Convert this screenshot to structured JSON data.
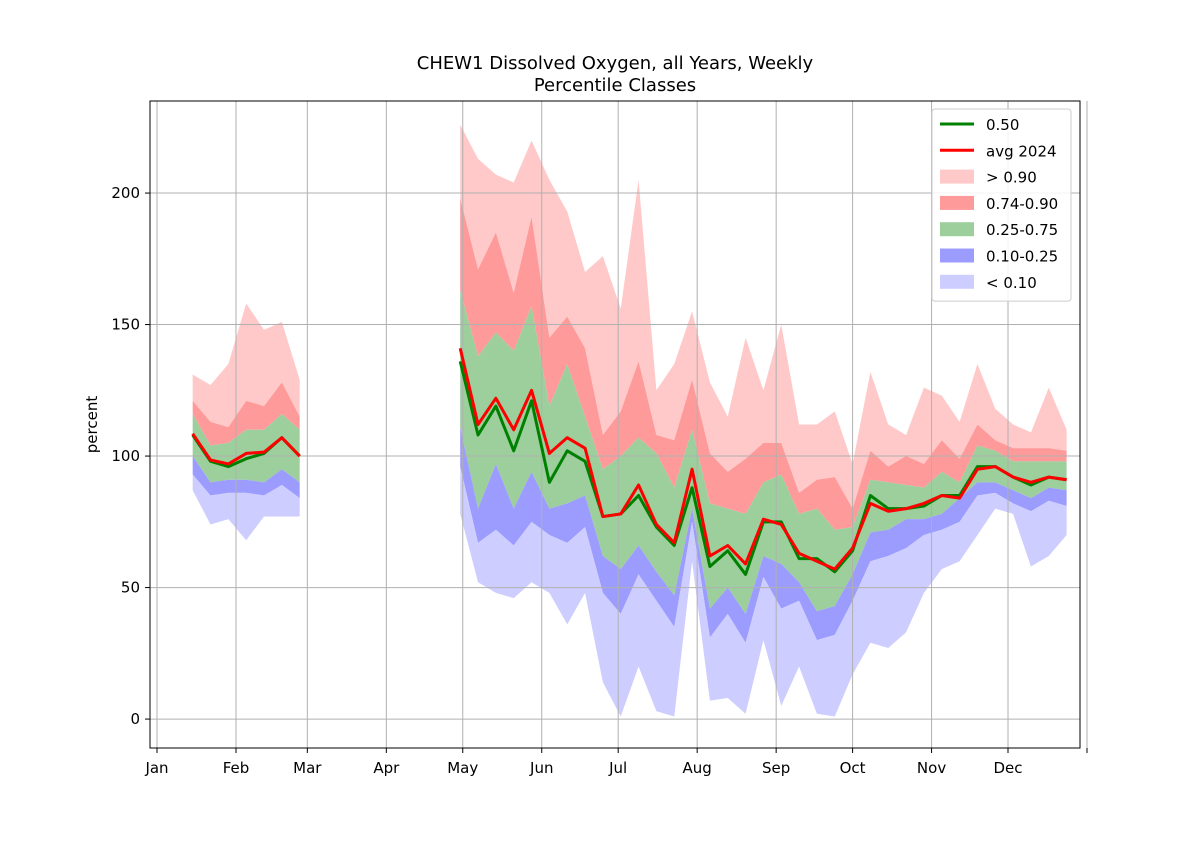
{
  "chart_data": {
    "type": "area",
    "title": "CHEW1 Dissolved Oxygen, all Years, Weekly",
    "subtitle": "Percentile Classes",
    "ylabel": "percent",
    "xlabel": "",
    "xlim": [
      1,
      366
    ],
    "ylim": [
      -11,
      235
    ],
    "grid": true,
    "legend_position": "top-right",
    "x_ticks": [
      {
        "label": "Jan",
        "doy": 1
      },
      {
        "label": "Feb",
        "doy": 32
      },
      {
        "label": "Mar",
        "doy": 60
      },
      {
        "label": "Apr",
        "doy": 91
      },
      {
        "label": "May",
        "doy": 121
      },
      {
        "label": "Jun",
        "doy": 152
      },
      {
        "label": "Jul",
        "doy": 182
      },
      {
        "label": "Aug",
        "doy": 213
      },
      {
        "label": "Sep",
        "doy": 244
      },
      {
        "label": "Oct",
        "doy": 274
      },
      {
        "label": "Nov",
        "doy": 305
      },
      {
        "label": "Dec",
        "doy": 335
      },
      {
        "label": "",
        "doy": 366
      }
    ],
    "y_ticks": [
      0,
      50,
      100,
      150,
      200
    ],
    "colors": {
      "gt90": "#ffc9c9",
      "p74_90": "#ff9a9a",
      "p25_75": "#9ccf9c",
      "p10_25": "#9c9cff",
      "lt10": "#cdcdff",
      "median": "#008000",
      "avg": "#ff0000"
    },
    "legend": [
      {
        "label": "0.50",
        "kind": "line",
        "color": "#008000"
      },
      {
        "label": "avg 2024",
        "kind": "line",
        "color": "#ff0000"
      },
      {
        "label": "> 0.90",
        "kind": "patch",
        "color": "#ffc9c9"
      },
      {
        "label": "0.74-0.90",
        "kind": "patch",
        "color": "#ff9a9a"
      },
      {
        "label": "0.25-0.75",
        "kind": "patch",
        "color": "#9ccf9c"
      },
      {
        "label": "0.10-0.25",
        "kind": "patch",
        "color": "#9c9cff"
      },
      {
        "label": "< 0.10",
        "kind": "patch",
        "color": "#cdcdff"
      }
    ],
    "segments": [
      {
        "x": [
          15,
          22,
          29,
          36,
          43,
          50,
          57
        ],
        "max": [
          131,
          127,
          135,
          158,
          148,
          151,
          129
        ],
        "p90": [
          121,
          113,
          111,
          121,
          119,
          128,
          115
        ],
        "p75": [
          116,
          104,
          105,
          110,
          110,
          116,
          110
        ],
        "p50": [
          108,
          98,
          96,
          99,
          101,
          107,
          100
        ],
        "p25": [
          100,
          90,
          91,
          91,
          90,
          95,
          90
        ],
        "p10": [
          93,
          85,
          86,
          86,
          85,
          89,
          84
        ],
        "min": [
          87,
          74,
          76,
          68,
          77,
          77,
          77
        ],
        "avg": [
          108.5,
          98.5,
          97,
          101,
          101.5,
          107,
          100
        ]
      },
      {
        "x": [
          120,
          127,
          134,
          141,
          148,
          155,
          162,
          169,
          176,
          183,
          190,
          197,
          204,
          211,
          218,
          225,
          232,
          239,
          246,
          253,
          260,
          267,
          274,
          281,
          288,
          295,
          302,
          309,
          316,
          323,
          330,
          337,
          344,
          351,
          358
        ],
        "max": [
          226,
          213,
          207,
          204,
          220,
          205,
          193,
          170,
          176,
          156,
          205,
          125,
          135,
          155,
          128,
          115,
          145,
          125,
          150,
          112,
          112,
          117,
          97,
          132,
          112,
          108,
          126,
          123,
          113,
          135,
          118,
          112,
          109,
          126,
          110
        ],
        "p90": [
          198,
          171,
          185,
          162,
          191,
          145,
          153,
          141,
          108,
          117,
          136,
          108,
          106,
          129,
          101,
          94,
          99,
          105,
          105,
          86,
          91,
          92,
          80,
          102,
          96,
          100,
          97,
          106,
          99,
          112,
          106,
          103,
          103,
          103,
          102
        ],
        "p75": [
          163,
          138,
          147,
          140,
          157,
          119,
          135,
          115,
          95,
          100,
          107,
          101,
          88,
          110,
          82,
          80,
          78,
          90,
          93,
          78,
          80,
          72,
          73,
          91,
          90,
          89,
          88,
          94,
          90,
          104,
          102,
          98,
          98,
          98,
          98
        ],
        "p50": [
          136,
          108,
          119,
          102,
          121,
          90,
          102,
          98,
          77,
          78,
          85,
          73,
          66,
          88,
          58,
          64,
          55,
          75,
          75,
          61,
          61,
          56,
          64,
          85,
          80,
          80,
          81,
          85,
          85,
          96,
          96,
          92,
          89,
          92,
          91
        ],
        "p25": [
          111,
          80,
          97,
          80,
          94,
          80,
          82,
          85,
          62,
          57,
          66,
          56,
          47,
          80,
          42,
          50,
          40,
          62,
          59,
          52,
          41,
          43,
          55,
          71,
          72,
          76,
          76,
          78,
          84,
          90,
          90,
          87,
          84,
          88,
          87
        ],
        "p10": [
          96,
          67,
          72,
          66,
          75,
          70,
          67,
          73,
          48,
          40,
          55,
          45,
          35,
          75,
          31,
          40,
          29,
          54,
          42,
          45,
          30,
          32,
          45,
          60,
          62,
          65,
          70,
          72,
          75,
          85,
          86,
          82,
          79,
          83,
          81
        ],
        "min": [
          78,
          52,
          48,
          46,
          52,
          48,
          36,
          48,
          14,
          1,
          20,
          3,
          1,
          60,
          7,
          8,
          2,
          30,
          5,
          20,
          2,
          1,
          17,
          29,
          27,
          33,
          48,
          57,
          60,
          70,
          80,
          78,
          58,
          62,
          70
        ],
        "avg": [
          141,
          112,
          122,
          110,
          125,
          101,
          107,
          103,
          77,
          78,
          89,
          74,
          67,
          95,
          62,
          66,
          59,
          76,
          74,
          63,
          60,
          57,
          65,
          82,
          79,
          80,
          82,
          85,
          84,
          95,
          96,
          92,
          90,
          92,
          91
        ]
      }
    ]
  }
}
